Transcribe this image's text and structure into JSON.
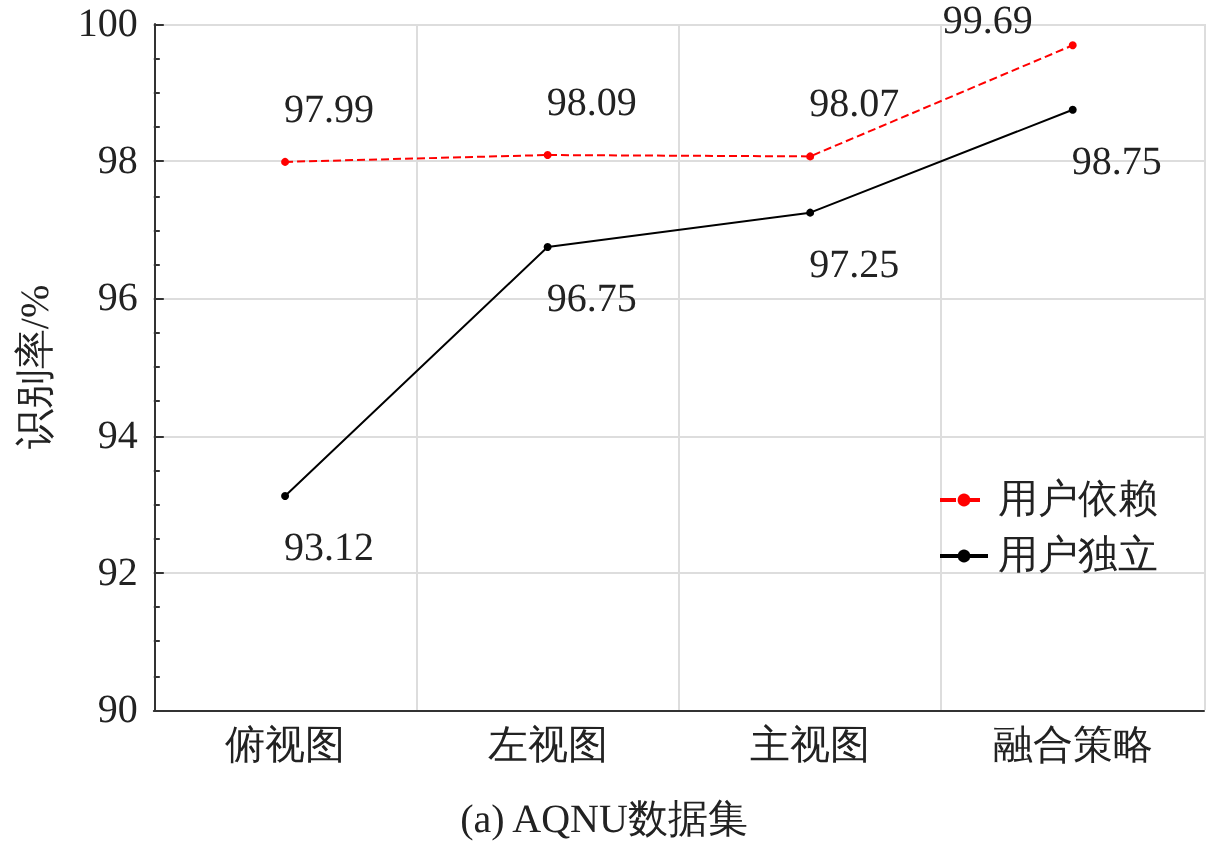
{
  "chart_data": {
    "type": "line",
    "title": "(a) AQNU数据集",
    "ylabel": "识别率/%",
    "categories": [
      "俯视图",
      "左视图",
      "主视图",
      "融合策略"
    ],
    "series": [
      {
        "name": "用户依赖",
        "color": "#ff0000",
        "values": [
          97.99,
          98.09,
          98.07,
          99.69
        ],
        "line_style": "dashed"
      },
      {
        "name": "用户独立",
        "color": "#000000",
        "values": [
          93.12,
          96.75,
          97.25,
          98.75
        ],
        "line_style": "solid"
      }
    ],
    "ylim": [
      90,
      100
    ],
    "yticks": [
      90,
      92,
      94,
      96,
      98,
      100
    ],
    "grid": true,
    "legend": "right",
    "marker": "circle",
    "data_labels": true
  }
}
